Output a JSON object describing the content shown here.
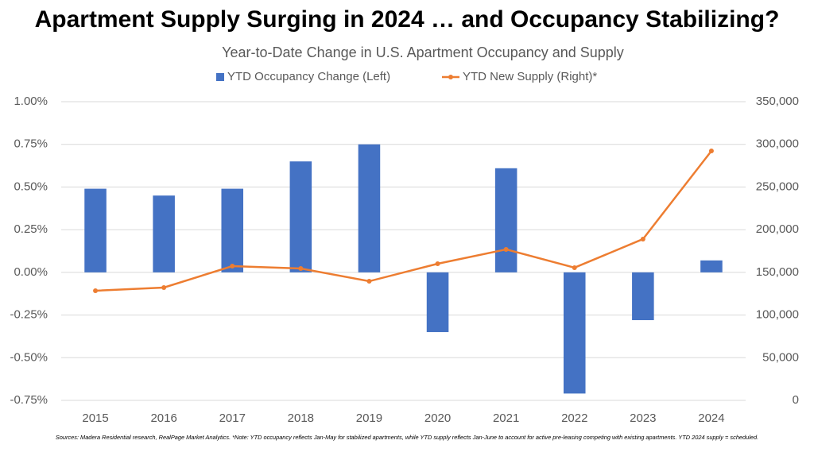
{
  "chart_data": {
    "type": "combo",
    "title": "Apartment Supply Surging in 2024 … and Occupancy Stabilizing?",
    "subtitle": "Year-to-Date Change in U.S. Apartment Occupancy and Supply",
    "note": "Sources: Madera Residential research, RealPage Market Analytics. *Note: YTD occupancy reflects Jan-May for stabilized apartments, while YTD supply reflects Jan-June to account for active pre-leasing competing with existing apartments. YTD 2024 supply = scheduled.",
    "categories": [
      "2015",
      "2016",
      "2017",
      "2018",
      "2019",
      "2020",
      "2021",
      "2022",
      "2023",
      "2024"
    ],
    "series": [
      {
        "name": "YTD Occupancy Change (Left)",
        "type": "bar",
        "color": "#4472c4",
        "values": [
          0.49,
          0.45,
          0.49,
          0.65,
          0.75,
          -0.35,
          0.61,
          -0.71,
          -0.28,
          0.07
        ]
      },
      {
        "name": "YTD New Supply (Right)*",
        "type": "line",
        "axis": "y2",
        "color": "#ed7d31",
        "values": [
          128500,
          132200,
          157300,
          154500,
          139600,
          160100,
          176900,
          155500,
          189000,
          292300
        ]
      }
    ],
    "ylim": [
      -0.75,
      1.0
    ],
    "yticks": [
      {
        "value": -0.75,
        "label": "-0.75%"
      },
      {
        "value": -0.5,
        "label": "-0.50%"
      },
      {
        "value": -0.25,
        "label": "-0.25%"
      },
      {
        "value": 0,
        "label": "0.00%"
      },
      {
        "value": 0.25,
        "label": "0.25%"
      },
      {
        "value": 0.5,
        "label": "0.50%"
      },
      {
        "value": 0.75,
        "label": "0.75%"
      },
      {
        "value": 1.0,
        "label": "1.00%"
      }
    ],
    "y2lim": [
      0,
      350000
    ],
    "y2ticks": [
      0,
      {
        "value": 50000,
        "label": "50,000"
      },
      {
        "value": 100000,
        "label": "100,000"
      },
      {
        "value": 150000,
        "label": "150,000"
      },
      {
        "value": 200000,
        "label": "200,000"
      },
      {
        "value": 250000,
        "label": "250,000"
      },
      {
        "value": 300000,
        "label": "300,000"
      },
      {
        "value": 350000,
        "label": "350,000"
      }
    ],
    "grid": true
  }
}
